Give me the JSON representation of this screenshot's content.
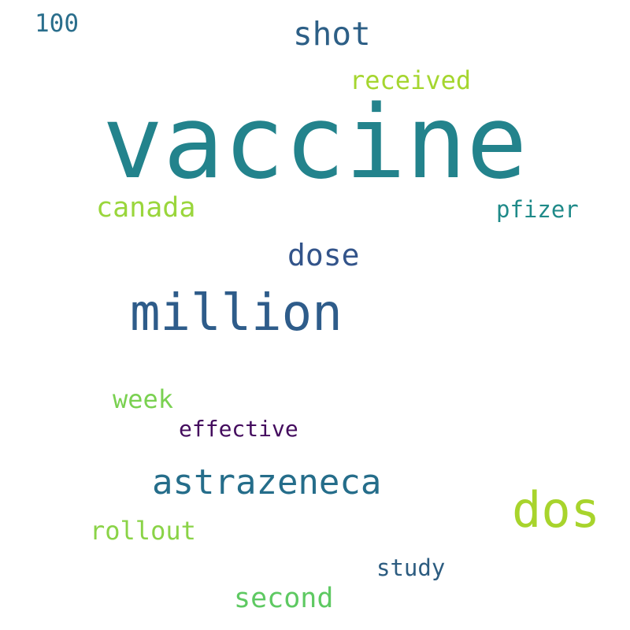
{
  "words": [
    {
      "id": "vaccine",
      "text": "vaccine",
      "color": "#23838c"
    },
    {
      "id": "million",
      "text": "million",
      "color": "#2e5c8a"
    },
    {
      "id": "dos",
      "text": "dos",
      "color": "#a8d42c"
    },
    {
      "id": "astrazeneca",
      "text": "astrazeneca",
      "color": "#256d8a"
    },
    {
      "id": "shot",
      "text": "shot",
      "color": "#2d5f86"
    },
    {
      "id": "dose",
      "text": "dose",
      "color": "#33548a"
    },
    {
      "id": "canada",
      "text": "canada",
      "color": "#9ad63c"
    },
    {
      "id": "second",
      "text": "second",
      "color": "#5ec962"
    },
    {
      "id": "received",
      "text": "received",
      "color": "#a5d62f"
    },
    {
      "id": "week",
      "text": "week",
      "color": "#7ad151"
    },
    {
      "id": "rollout",
      "text": "rollout",
      "color": "#8ad347"
    },
    {
      "id": "100",
      "text": "100",
      "color": "#2a6e8c"
    },
    {
      "id": "pfizer",
      "text": "pfizer",
      "color": "#1f8a89"
    },
    {
      "id": "study",
      "text": "study",
      "color": "#2c5c80"
    },
    {
      "id": "effective",
      "text": "effective",
      "color": "#440c5e"
    }
  ]
}
